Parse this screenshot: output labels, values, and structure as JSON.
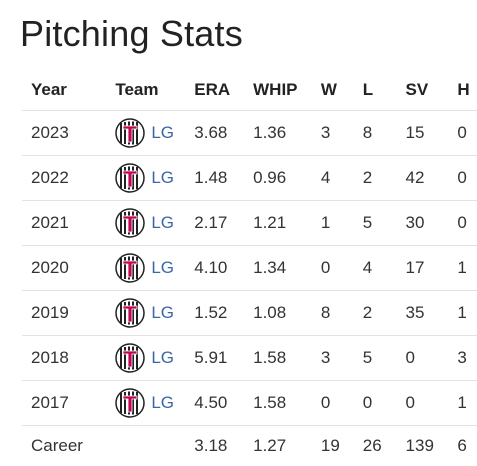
{
  "page": {
    "title": "Pitching Stats"
  },
  "table": {
    "headers": {
      "year": "Year",
      "team": "Team",
      "era": "ERA",
      "whip": "WHIP",
      "w": "W",
      "l": "L",
      "sv": "SV",
      "h": "H"
    },
    "rows": [
      {
        "year": "2023",
        "team": "LG",
        "era": "3.68",
        "whip": "1.36",
        "w": "3",
        "l": "8",
        "sv": "15",
        "h": "0"
      },
      {
        "year": "2022",
        "team": "LG",
        "era": "1.48",
        "whip": "0.96",
        "w": "4",
        "l": "2",
        "sv": "42",
        "h": "0"
      },
      {
        "year": "2021",
        "team": "LG",
        "era": "2.17",
        "whip": "1.21",
        "w": "1",
        "l": "5",
        "sv": "30",
        "h": "0"
      },
      {
        "year": "2020",
        "team": "LG",
        "era": "4.10",
        "whip": "1.34",
        "w": "0",
        "l": "4",
        "sv": "17",
        "h": "1"
      },
      {
        "year": "2019",
        "team": "LG",
        "era": "1.52",
        "whip": "1.08",
        "w": "8",
        "l": "2",
        "sv": "35",
        "h": "1"
      },
      {
        "year": "2018",
        "team": "LG",
        "era": "5.91",
        "whip": "1.58",
        "w": "3",
        "l": "5",
        "sv": "0",
        "h": "3"
      },
      {
        "year": "2017",
        "team": "LG",
        "era": "4.50",
        "whip": "1.58",
        "w": "0",
        "l": "0",
        "sv": "0",
        "h": "1"
      }
    ],
    "career": {
      "label": "Career",
      "era": "3.18",
      "whip": "1.27",
      "w": "19",
      "l": "26",
      "sv": "139",
      "h": "6"
    }
  },
  "icons": {
    "team_logo": "lg-twins-logo-icon"
  },
  "colors": {
    "link": "#3a66a8",
    "logo_red": "#c30452",
    "divider": "#e2e2e2"
  }
}
